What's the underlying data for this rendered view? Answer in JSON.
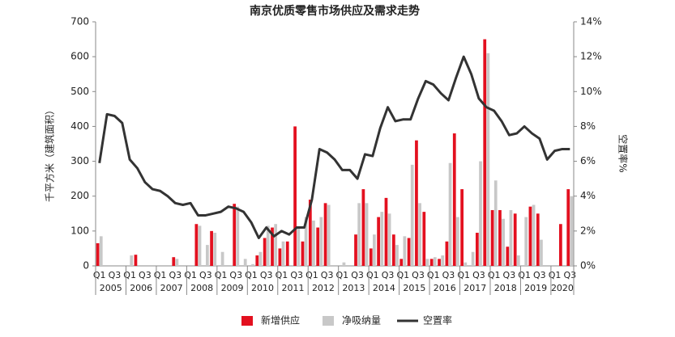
{
  "chart_data": {
    "type": "bar_line",
    "title": "南京优质零售市场供应及需求走势",
    "y_label": "千平方米（建筑面积）",
    "y2_label": "空置率%",
    "categories": [
      "Q1",
      null,
      "Q3",
      null,
      "Q1",
      null,
      "Q3",
      null,
      "Q1",
      null,
      "Q3",
      null,
      "Q1",
      null,
      "Q3",
      null,
      "Q1",
      null,
      "Q3",
      null,
      "Q1",
      null,
      "Q3",
      null,
      "Q1",
      null,
      "Q3",
      null,
      "Q1",
      null,
      "Q3",
      null,
      "Q1",
      null,
      "Q3",
      null,
      "Q1",
      null,
      "Q3",
      null,
      "Q1",
      null,
      "Q3",
      null,
      "Q1",
      null,
      "Q3",
      null,
      "Q1",
      null,
      "Q3",
      null,
      "Q1",
      null,
      "Q3",
      null,
      "Q1",
      null,
      "Q3",
      null,
      "Q1",
      null,
      "Q3"
    ],
    "years": [
      "2005",
      "2006",
      "2007",
      "2008",
      "2009",
      "2010",
      "2011",
      "2012",
      "2013",
      "2014",
      "2015",
      "2016",
      "2017",
      "2018",
      "2019",
      "2020"
    ],
    "series": [
      {
        "name": "新增供应",
        "color": "#e3101f",
        "values": [
          65,
          0,
          0,
          0,
          0,
          32,
          0,
          0,
          0,
          0,
          25,
          0,
          0,
          120,
          0,
          100,
          0,
          0,
          178,
          0,
          0,
          30,
          80,
          110,
          50,
          70,
          400,
          70,
          190,
          110,
          180,
          0,
          0,
          0,
          90,
          220,
          50,
          140,
          195,
          90,
          20,
          80,
          360,
          155,
          20,
          20,
          70,
          380,
          220,
          0,
          95,
          650,
          160,
          160,
          55,
          150,
          0,
          170,
          150,
          0,
          0,
          120,
          220
        ]
      },
      {
        "name": "净吸纳量",
        "color": "#c8c8c8",
        "values": [
          85,
          0,
          0,
          0,
          30,
          0,
          0,
          0,
          0,
          0,
          20,
          0,
          0,
          115,
          60,
          95,
          40,
          0,
          170,
          20,
          5,
          40,
          115,
          120,
          70,
          0,
          110,
          140,
          130,
          140,
          175,
          0,
          10,
          0,
          180,
          180,
          90,
          155,
          150,
          60,
          85,
          290,
          180,
          20,
          25,
          30,
          295,
          140,
          10,
          40,
          300,
          610,
          245,
          135,
          160,
          30,
          140,
          175,
          75,
          0,
          0,
          0,
          200
        ]
      },
      {
        "name": "空置率",
        "color": "#333333",
        "axis": "y2",
        "values": [
          5.9,
          8.7,
          8.6,
          8.2,
          6.1,
          5.6,
          4.8,
          4.4,
          4.3,
          4.0,
          3.6,
          3.5,
          3.6,
          2.9,
          2.9,
          3.0,
          3.1,
          3.4,
          3.3,
          3.1,
          2.5,
          1.6,
          2.2,
          1.7,
          2.0,
          1.8,
          2.2,
          2.2,
          3.8,
          6.7,
          6.5,
          6.1,
          5.5,
          5.5,
          5.0,
          6.4,
          6.3,
          7.9,
          9.1,
          8.3,
          8.4,
          8.4,
          9.6,
          10.6,
          10.4,
          9.9,
          9.5,
          10.8,
          12.0,
          11.0,
          9.6,
          9.1,
          8.9,
          8.3,
          7.5,
          7.6,
          8.0,
          7.6,
          7.3,
          6.1,
          6.6,
          6.7,
          6.7
        ]
      }
    ],
    "ylim": [
      0,
      700
    ],
    "yticks": [
      0,
      100,
      200,
      300,
      400,
      500,
      600,
      700
    ],
    "y2lim": [
      0,
      14
    ],
    "y2ticks": [
      {
        "value": 0,
        "label": "0%"
      },
      {
        "value": 2,
        "label": "2%"
      },
      {
        "value": 4,
        "label": "4%"
      },
      {
        "value": 6,
        "label": "6%"
      },
      {
        "value": 8,
        "label": "8%"
      },
      {
        "value": 10,
        "label": "10%"
      },
      {
        "value": 12,
        "label": "12%"
      },
      {
        "value": 14,
        "label": "14%"
      }
    ],
    "legend": "bottom"
  }
}
